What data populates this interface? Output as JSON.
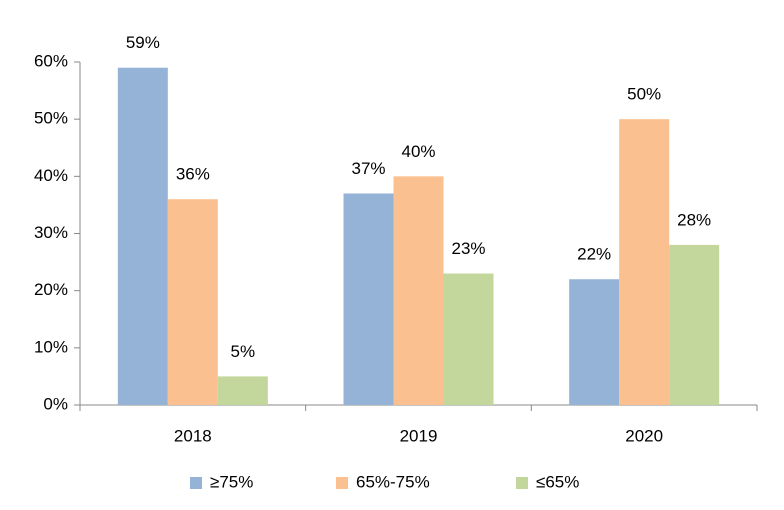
{
  "chart_data": {
    "type": "bar",
    "categories": [
      "2018",
      "2019",
      "2020"
    ],
    "series": [
      {
        "name": "≥75%",
        "color": "#95b3d7",
        "values": [
          59,
          37,
          22
        ],
        "value_labels": [
          "59%",
          "37%",
          "22%"
        ]
      },
      {
        "name": "65%-75%",
        "color": "#fac090",
        "values": [
          36,
          40,
          50
        ],
        "value_labels": [
          "36%",
          "40%",
          "50%"
        ]
      },
      {
        "name": "≤65%",
        "color": "#c3d69b",
        "values": [
          5,
          23,
          28
        ],
        "value_labels": [
          "5%",
          "23%",
          "28%"
        ]
      }
    ],
    "ylim": [
      0,
      60
    ],
    "yticks": [
      {
        "value": 0,
        "label": "0%"
      },
      {
        "value": 10,
        "label": "10%"
      },
      {
        "value": 20,
        "label": "20%"
      },
      {
        "value": 30,
        "label": "30%"
      },
      {
        "value": 40,
        "label": "40%"
      },
      {
        "value": 50,
        "label": "50%"
      },
      {
        "value": 60,
        "label": "60%"
      }
    ],
    "grid": false,
    "legend": "bottom"
  }
}
